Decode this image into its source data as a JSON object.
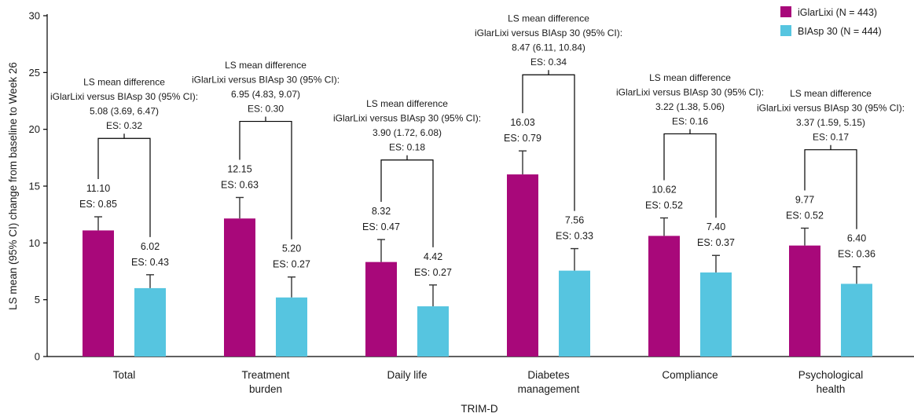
{
  "chart_data": {
    "type": "bar",
    "xlabel": "TRIM-D",
    "ylabel": "LS mean (95% CI) change from baseline to Week 26",
    "ylim": [
      0,
      30
    ],
    "yticks": [
      0,
      5,
      10,
      15,
      20,
      25,
      30
    ],
    "grid": false,
    "legend_position": "top-right",
    "categories": [
      [
        "Total"
      ],
      [
        "Treatment",
        "burden"
      ],
      [
        "Daily life"
      ],
      [
        "Diabetes",
        "management"
      ],
      [
        "Compliance"
      ],
      [
        "Psychological",
        "health"
      ]
    ],
    "series": [
      {
        "name": "iGlarLixi (N = 443)",
        "color": "#a8087a",
        "values": [
          11.1,
          12.15,
          8.32,
          16.03,
          10.62,
          9.77
        ],
        "ci_upper": [
          12.3,
          14.0,
          10.3,
          18.1,
          12.2,
          11.3
        ],
        "labels": [
          [
            "11.10",
            "ES: 0.85"
          ],
          [
            "12.15",
            "ES: 0.63"
          ],
          [
            "8.32",
            "ES: 0.47"
          ],
          [
            "16.03",
            "ES: 0.79"
          ],
          [
            "10.62",
            "ES: 0.52"
          ],
          [
            "9.77",
            "ES: 0.52"
          ]
        ]
      },
      {
        "name": "BIAsp 30 (N = 444)",
        "color": "#56c5e0",
        "values": [
          6.02,
          5.2,
          4.42,
          7.56,
          7.4,
          6.4
        ],
        "ci_upper": [
          7.2,
          7.0,
          6.3,
          9.5,
          8.9,
          7.9
        ],
        "labels": [
          [
            "6.02",
            "ES: 0.43"
          ],
          [
            "5.20",
            "ES: 0.27"
          ],
          [
            "4.42",
            "ES: 0.27"
          ],
          [
            "7.56",
            "ES: 0.33"
          ],
          [
            "7.40",
            "ES: 0.37"
          ],
          [
            "6.40",
            "ES: 0.36"
          ]
        ]
      }
    ],
    "comparisons": [
      {
        "bracket_y": 19.2,
        "text": [
          "LS mean difference",
          "iGlarLixi versus BIAsp 30 (95% CI):",
          "5.08 (3.69, 6.47)",
          "ES: 0.32"
        ]
      },
      {
        "bracket_y": 20.7,
        "text": [
          "LS mean difference",
          "iGlarLixi versus BIAsp 30 (95% CI):",
          "6.95 (4.83, 9.07)",
          "ES: 0.30"
        ]
      },
      {
        "bracket_y": 17.3,
        "text": [
          "LS mean difference",
          "iGlarLixi versus BIAsp 30 (95% CI):",
          "3.90 (1.72, 6.08)",
          "ES: 0.18"
        ]
      },
      {
        "bracket_y": 24.8,
        "text": [
          "LS mean difference",
          "iGlarLixi versus BIAsp 30 (95% CI):",
          "8.47 (6.11, 10.84)",
          "ES: 0.34"
        ]
      },
      {
        "bracket_y": 19.6,
        "text": [
          "LS mean difference",
          "iGlarLixi versus BIAsp 30 (95% CI):",
          "3.22 (1.38, 5.06)",
          "ES: 0.16"
        ]
      },
      {
        "bracket_y": 18.2,
        "text": [
          "LS mean difference",
          "iGlarLixi versus BIAsp 30 (95% CI):",
          "3.37 (1.59, 5.15)",
          "ES: 0.17"
        ]
      }
    ]
  }
}
